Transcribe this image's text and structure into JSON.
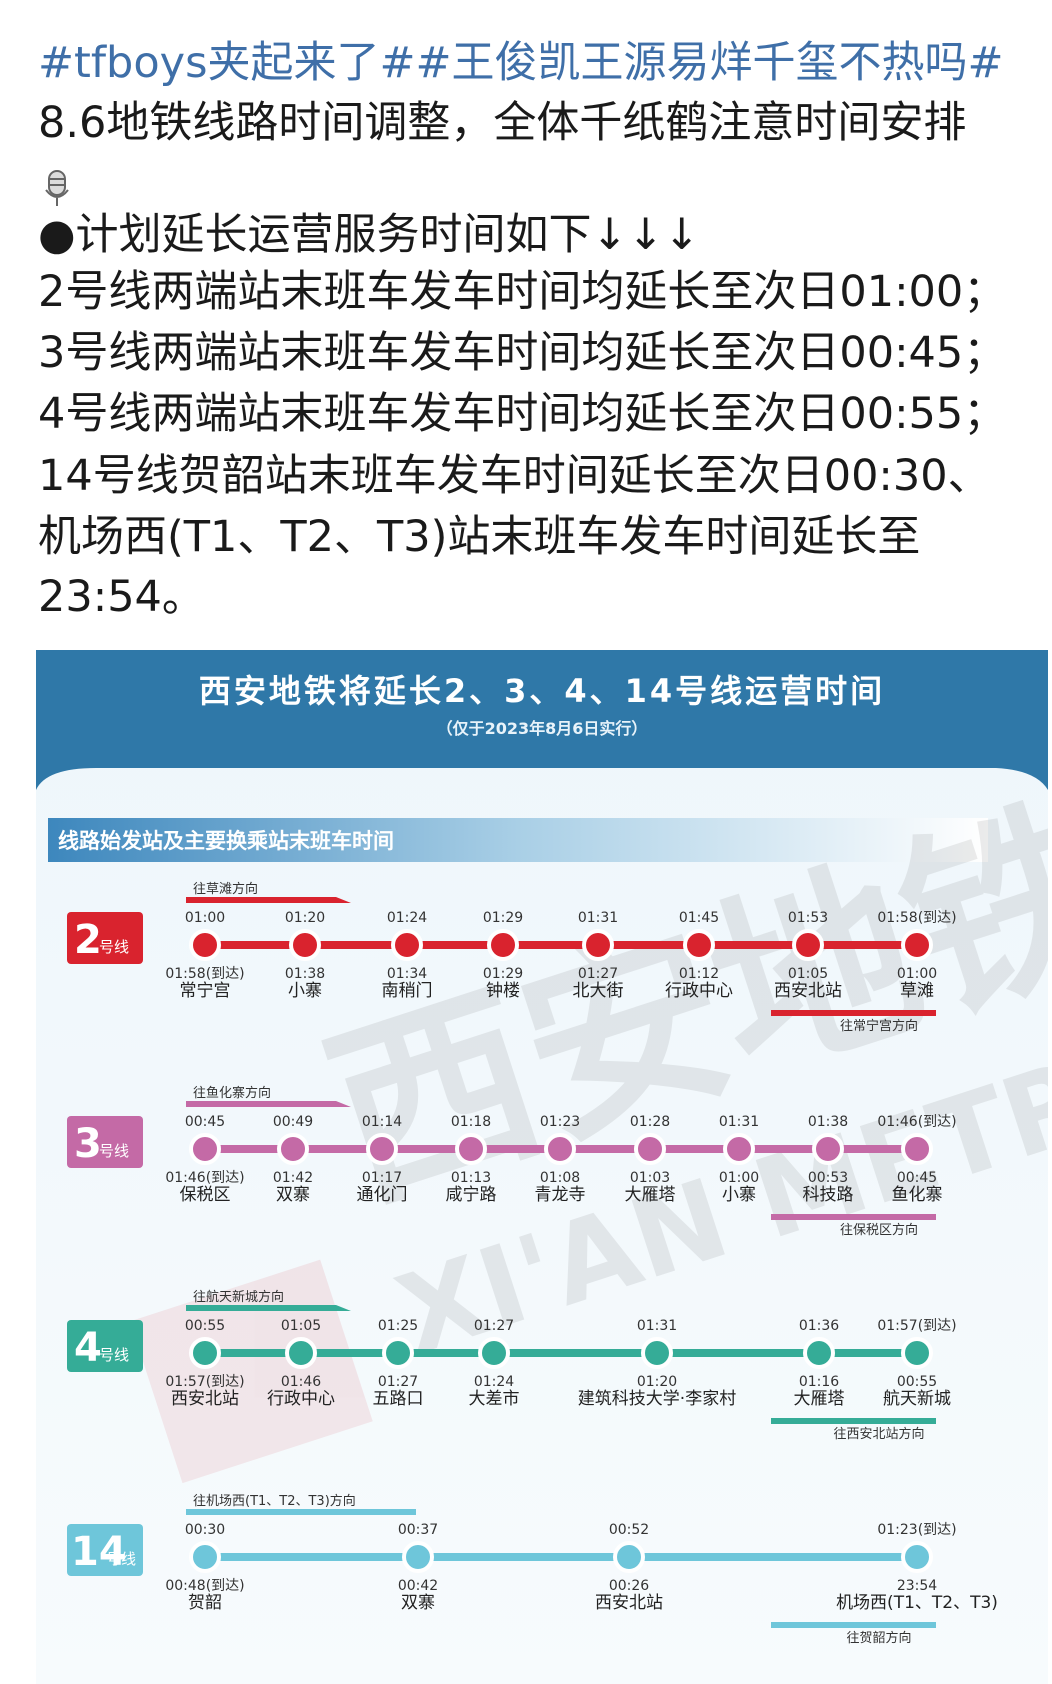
{
  "post": {
    "hashtags": "#tfboys夹起来了##王俊凯王源易烊千玺不热吗#",
    "lines": [
      "8.6地铁线路时间调整，全体千纸鹤注意时间安排",
      "●计划延长运营服务时间如下↓↓↓",
      "2号线两端站末班车发车时间均延长至次日01:00；",
      "3号线两端站末班车发车时间均延长至次日00:45；",
      "4号线两端站末班车发车时间均延长至次日00:55；",
      "14号线贺韶站末班车发车时间延长至次日00:30、",
      "机场西(T1、T2、T3)站末班车发车时间延长至",
      "23:54。"
    ]
  },
  "infographic": {
    "title": "西安地铁将延长2、3、4、14号线运营时间",
    "subtitle": "（仅于2023年8月6日实行）",
    "section": "线路始发站及主要换乘站末班车时间",
    "watermark": "西安地铁",
    "watermark_en": "XI'AN METRO",
    "lines": [
      {
        "number": "2",
        "suffix": "号线",
        "color": "#d9232e",
        "direction_top": "往草滩方向",
        "direction_bottom": "往常宁宫方向",
        "stations": [
          {
            "top": "01:00",
            "bottom": "01:58(到达)",
            "name": "常宁宫"
          },
          {
            "top": "01:20",
            "bottom": "01:38",
            "name": "小寨"
          },
          {
            "top": "01:24",
            "bottom": "01:34",
            "name": "南稍门"
          },
          {
            "top": "01:29",
            "bottom": "01:29",
            "name": "钟楼"
          },
          {
            "top": "01:31",
            "bottom": "01:27",
            "name": "北大街"
          },
          {
            "top": "01:45",
            "bottom": "01:12",
            "name": "行政中心"
          },
          {
            "top": "01:53",
            "bottom": "01:05",
            "name": "西安北站"
          },
          {
            "top": "01:58(到达)",
            "bottom": "01:00",
            "name": "草滩"
          }
        ]
      },
      {
        "number": "3",
        "suffix": "号线",
        "color": "#c46aa6",
        "direction_top": "往鱼化寨方向",
        "direction_bottom": "往保税区方向",
        "stations": [
          {
            "top": "00:45",
            "bottom": "01:46(到达)",
            "name": "保税区"
          },
          {
            "top": "00:49",
            "bottom": "01:42",
            "name": "双寨"
          },
          {
            "top": "01:14",
            "bottom": "01:17",
            "name": "通化门"
          },
          {
            "top": "01:18",
            "bottom": "01:13",
            "name": "咸宁路"
          },
          {
            "top": "01:23",
            "bottom": "01:08",
            "name": "青龙寺"
          },
          {
            "top": "01:28",
            "bottom": "01:03",
            "name": "大雁塔"
          },
          {
            "top": "01:31",
            "bottom": "01:00",
            "name": "小寨"
          },
          {
            "top": "01:38",
            "bottom": "00:53",
            "name": "科技路"
          },
          {
            "top": "01:46(到达)",
            "bottom": "00:45",
            "name": "鱼化寨"
          }
        ]
      },
      {
        "number": "4",
        "suffix": "号线",
        "color": "#35ac97",
        "direction_top": "往航天新城方向",
        "direction_bottom": "往西安北站方向",
        "stations": [
          {
            "top": "00:55",
            "bottom": "01:57(到达)",
            "name": "西安北站"
          },
          {
            "top": "01:05",
            "bottom": "01:46",
            "name": "行政中心"
          },
          {
            "top": "01:25",
            "bottom": "01:27",
            "name": "五路口"
          },
          {
            "top": "01:27",
            "bottom": "01:24",
            "name": "大差市"
          },
          {
            "top": "01:31",
            "bottom": "01:20",
            "name": "建筑科技大学·李家村"
          },
          {
            "top": "01:36",
            "bottom": "01:16",
            "name": "大雁塔"
          },
          {
            "top": "01:57(到达)",
            "bottom": "00:55",
            "name": "航天新城"
          }
        ]
      },
      {
        "number": "14",
        "suffix": "号线",
        "color": "#6ec6da",
        "direction_top": "往机场西(T1、T2、T3)方向",
        "direction_bottom": "往贺韶方向",
        "stations": [
          {
            "top": "00:30",
            "bottom": "00:48(到达)",
            "name": "贺韶"
          },
          {
            "top": "00:37",
            "bottom": "00:42",
            "name": "双寨"
          },
          {
            "top": "00:52",
            "bottom": "00:26",
            "name": "西安北站"
          },
          {
            "top": "01:23(到达)",
            "bottom": "23:54",
            "name": "机场西(T1、T2、T3)"
          }
        ]
      }
    ]
  }
}
